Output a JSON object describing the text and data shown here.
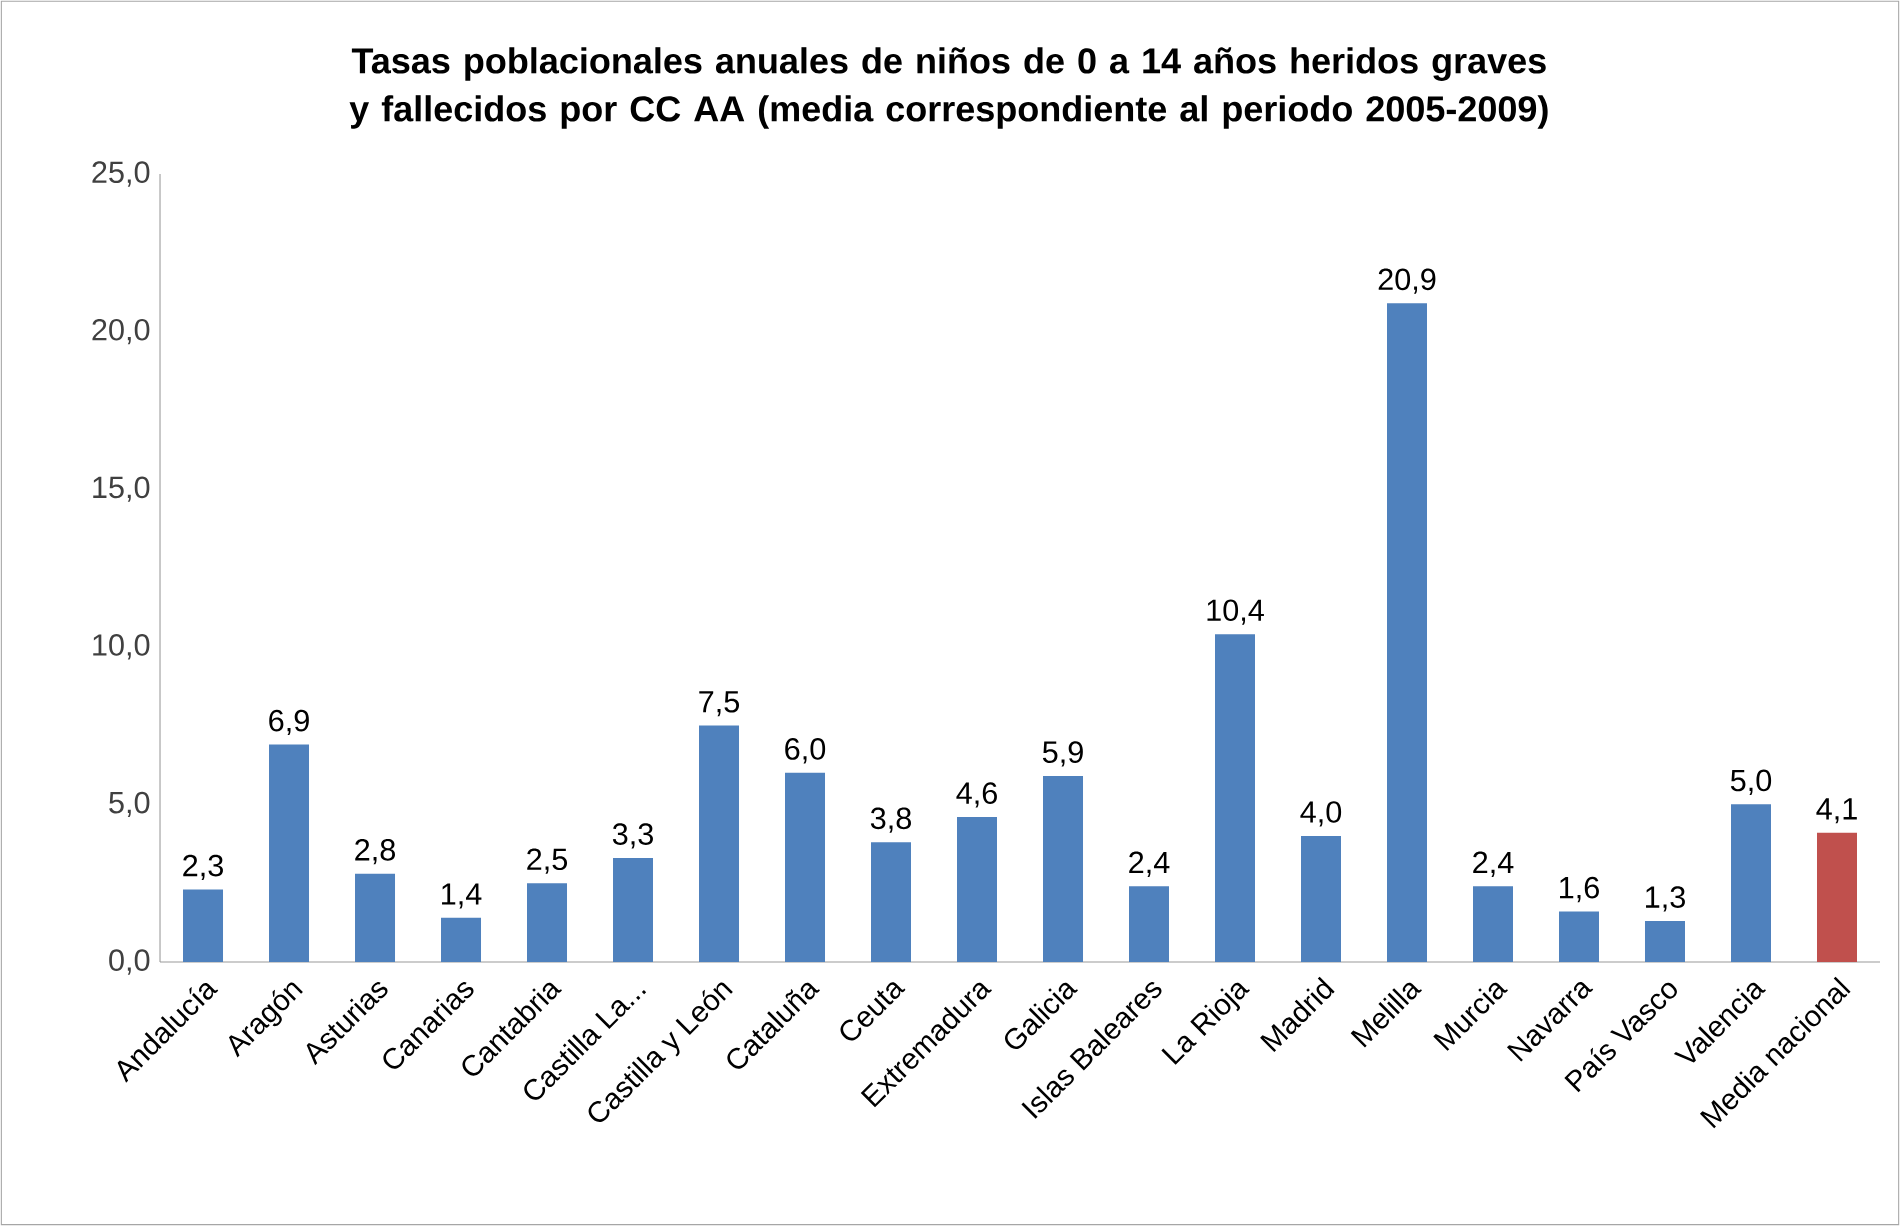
{
  "chart_data": {
    "type": "bar",
    "title": "Tasas poblacionales anuales de niños de 0 a 14 años heridos graves y fallecidos por CC AA (media correspondiente al periodo 2005-2009)",
    "categories": [
      "Andalucía",
      "Aragón",
      "Asturias",
      "Canarias",
      "Cantabria",
      "Castilla La...",
      "Castilla y León",
      "Cataluña",
      "Ceuta",
      "Extremadura",
      "Galicia",
      "Islas Baleares",
      "La Rioja",
      "Madrid",
      "Melilla",
      "Murcia",
      "Navarra",
      "País Vasco",
      "Valencia",
      "Media nacional"
    ],
    "values": [
      2.3,
      6.9,
      2.8,
      1.4,
      2.5,
      3.3,
      7.5,
      6.0,
      3.8,
      4.6,
      5.9,
      2.4,
      10.4,
      4.0,
      20.9,
      2.4,
      1.6,
      1.3,
      5.0,
      4.1
    ],
    "value_labels": [
      "2,3",
      "6,9",
      "2,8",
      "1,4",
      "2,5",
      "3,3",
      "7,5",
      "6,0",
      "3,8",
      "4,6",
      "5,9",
      "2,4",
      "10,4",
      "4,0",
      "20,9",
      "2,4",
      "1,6",
      "1,3",
      "5,0",
      "4,1"
    ],
    "colors": [
      "#4f81bd",
      "#4f81bd",
      "#4f81bd",
      "#4f81bd",
      "#4f81bd",
      "#4f81bd",
      "#4f81bd",
      "#4f81bd",
      "#4f81bd",
      "#4f81bd",
      "#4f81bd",
      "#4f81bd",
      "#4f81bd",
      "#4f81bd",
      "#4f81bd",
      "#4f81bd",
      "#4f81bd",
      "#4f81bd",
      "#4f81bd",
      "#c0504d"
    ],
    "ylim": [
      0,
      25
    ],
    "yticks": [
      {
        "value": 0,
        "label": "0,0"
      },
      {
        "value": 5,
        "label": "5,0"
      },
      {
        "value": 10,
        "label": "10,0"
      },
      {
        "value": 15,
        "label": "15,0"
      },
      {
        "value": 20,
        "label": "20,0"
      },
      {
        "value": 25,
        "label": "25,0"
      }
    ]
  }
}
